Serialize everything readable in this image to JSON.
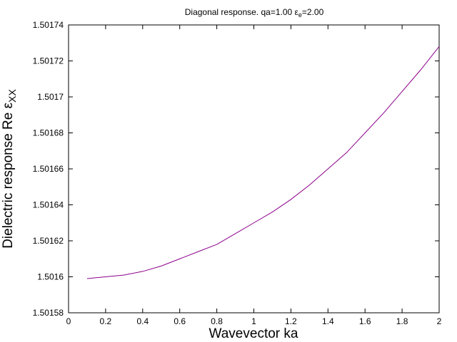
{
  "chart_data": {
    "type": "line",
    "title": {
      "prefix": "Diagonal response. qa=1.00 ",
      "symbol": "ε",
      "symbol_sub": "e",
      "suffix": "=2.00"
    },
    "xlabel": "Wavevector ka",
    "ylabel": {
      "text": "Dielectric response Re ",
      "symbol": "ε",
      "symbol_sub": "XX"
    },
    "xlim": [
      0,
      2
    ],
    "ylim": [
      1.50158,
      1.50174
    ],
    "x_ticks": [
      "0",
      "0.2",
      "0.4",
      "0.6",
      "0.8",
      "1",
      "1.2",
      "1.4",
      "1.6",
      "1.8",
      "2"
    ],
    "x_tick_values": [
      0,
      0.2,
      0.4,
      0.6,
      0.8,
      1.0,
      1.2,
      1.4,
      1.6,
      1.8,
      2.0
    ],
    "y_ticks": [
      "1.50158",
      "1.5016",
      "1.50162",
      "1.50164",
      "1.50166",
      "1.50168",
      "1.5017",
      "1.50172",
      "1.50174"
    ],
    "y_tick_values": [
      1.50158,
      1.5016,
      1.50162,
      1.50164,
      1.50166,
      1.50168,
      1.5017,
      1.50172,
      1.50174
    ],
    "grid": false,
    "line_color": "#8b008b",
    "series": [
      {
        "x": [
          0.1,
          0.2,
          0.3,
          0.4,
          0.5,
          0.6,
          0.7,
          0.8,
          0.9,
          1.0,
          1.1,
          1.2,
          1.3,
          1.4,
          1.5,
          1.6,
          1.7,
          1.8,
          1.9,
          2.0
        ],
        "y": [
          1.501599,
          1.5016,
          1.501601,
          1.501603,
          1.501606,
          1.50161,
          1.501614,
          1.501618,
          1.501624,
          1.50163,
          1.501636,
          1.501643,
          1.501651,
          1.50166,
          1.501669,
          1.50168,
          1.501691,
          1.501703,
          1.501715,
          1.501728
        ]
      }
    ]
  }
}
